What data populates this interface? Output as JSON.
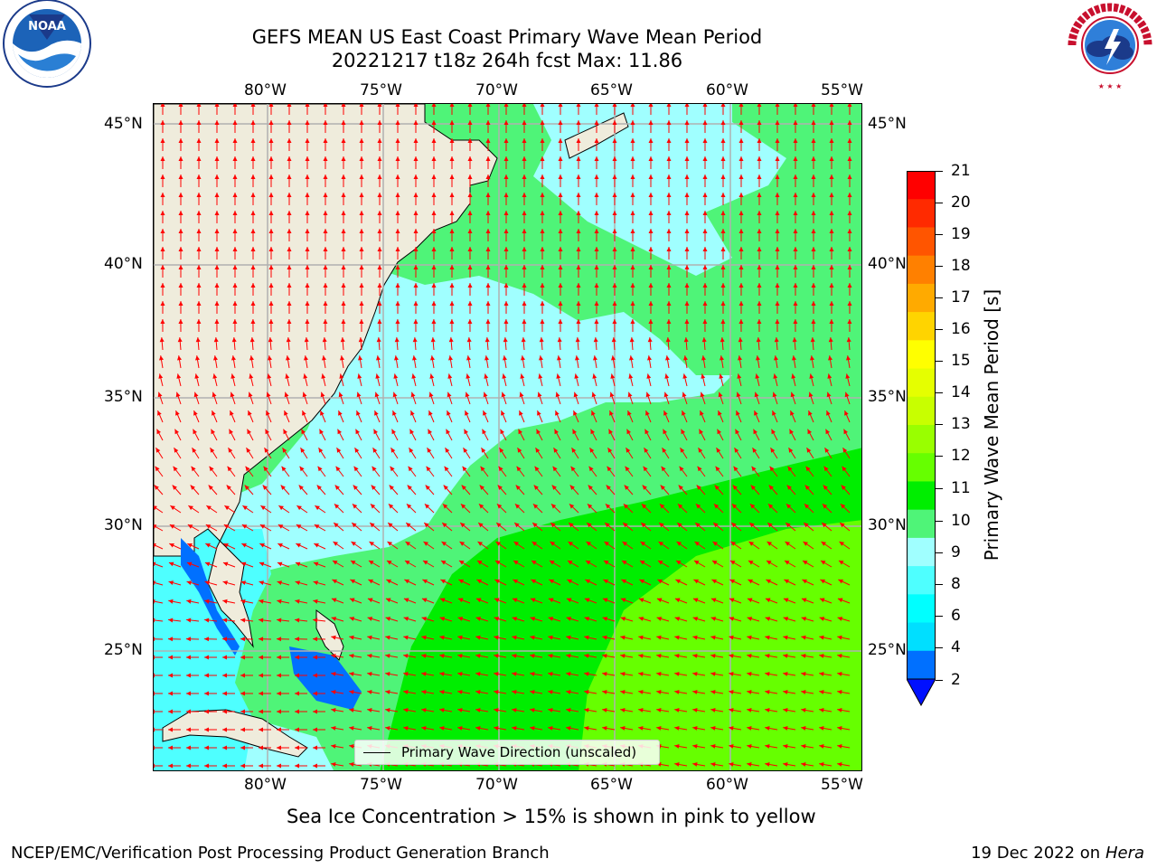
{
  "header": {
    "title_line1": "GEFS MEAN US East Coast Primary Wave Mean Period",
    "title_line2": "20221217 t18z 264h fcst   Max: 11.86"
  },
  "logos": {
    "left": "NOAA",
    "right": "NATIONAL WEATHER SERVICE"
  },
  "map": {
    "lon_ticks_top": [
      "80°W",
      "75°W",
      "70°W",
      "65°W",
      "60°W",
      "55°W"
    ],
    "lon_ticks_bottom": [
      "80°W",
      "75°W",
      "70°W",
      "65°W",
      "60°W",
      "55°W"
    ],
    "lat_ticks_left": [
      "45°N",
      "40°N",
      "35°N",
      "30°N",
      "25°N"
    ],
    "lat_ticks_right": [
      "45°N",
      "40°N",
      "35°N",
      "30°N",
      "25°N"
    ],
    "legend_label": "Primary Wave Direction (unscaled)",
    "colors": {
      "land": "#efecdc",
      "arrow": "#ff0000",
      "grid": "#b0b0b0"
    }
  },
  "colorbar": {
    "label": "Primary Wave Mean Period [s]",
    "ticks": [
      "21",
      "20",
      "19",
      "18",
      "17",
      "16",
      "15",
      "14",
      "13",
      "12",
      "11",
      "10",
      "9",
      "8",
      "6",
      "4",
      "2"
    ],
    "colors": [
      "#ff0000",
      "#ff2a00",
      "#ff5500",
      "#ff8000",
      "#ffaa00",
      "#ffd400",
      "#ffff00",
      "#e5ff00",
      "#c8ff00",
      "#99ff00",
      "#66ff00",
      "#00ee00",
      "#4ff478",
      "#a0ffff",
      "#4effff",
      "#00ffff",
      "#00dfff",
      "#0070ff"
    ],
    "under_color": "#0010ff"
  },
  "footer": {
    "note": "Sea Ice Concentration > 15% is shown in pink to yellow",
    "left": "NCEP/EMC/Verification Post Processing Product Generation Branch",
    "right_date": "19 Dec 2022 on",
    "right_host": "Hera"
  }
}
